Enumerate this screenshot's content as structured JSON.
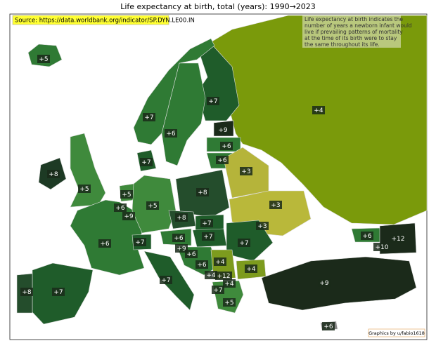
{
  "header": {
    "title": "Life expectancy at birth, total (years):  1990→2023",
    "source": "Source: https://data.worldbank.org/indicator/SP.DYN.LE00.IN",
    "note": [
      "Life expectancy at birth indicates the",
      "number of years a newborn infant would",
      "live if prevailing patterns of mortality",
      "at the time of its birth were to stay",
      "the same throughout its life."
    ],
    "credit": "Graphics by u/fabio1618"
  },
  "regions": [
    {
      "label": "+5",
      "color": "#2f7a34"
    },
    {
      "label": "+7",
      "color": "#2f7a34"
    },
    {
      "label": "+6",
      "color": "#2f7a34"
    },
    {
      "label": "+7",
      "color": "#1f5c2a"
    },
    {
      "label": "+4",
      "color": "#7a9a0b"
    },
    {
      "label": "+9",
      "color": "#1b2a1a"
    },
    {
      "label": "+6",
      "color": "#2f7a34"
    },
    {
      "label": "+6",
      "color": "#2f7a34"
    },
    {
      "label": "+7",
      "color": "#1f5c2a"
    },
    {
      "label": "+8",
      "color": "#1d3a24"
    },
    {
      "label": "+5",
      "color": "#3f8a3c"
    },
    {
      "label": "+3",
      "color": "#b5b43a"
    },
    {
      "label": "+8",
      "color": "#244d2c"
    },
    {
      "label": "+5",
      "color": "#3f8a3c"
    },
    {
      "label": "+6",
      "color": "#2f7a34"
    },
    {
      "label": "+9",
      "color": "#1b2a1a"
    },
    {
      "label": "+5",
      "color": "#3f8a3c"
    },
    {
      "label": "+3",
      "color": "#b9b83a"
    },
    {
      "label": "+8",
      "color": "#244d2c"
    },
    {
      "label": "+7",
      "color": "#1f5c2a"
    },
    {
      "label": "+3",
      "color": "#b9b83a"
    },
    {
      "label": "+6",
      "color": "#2f7a34"
    },
    {
      "label": "+7",
      "color": "#1f5c2a"
    },
    {
      "label": "+6",
      "color": "#2f7a34"
    },
    {
      "label": "+7",
      "color": "#1f5c2a"
    },
    {
      "label": "+7",
      "color": "#1f5c2a"
    },
    {
      "label": "+9",
      "color": "#1b2a1a"
    },
    {
      "label": "+6",
      "color": "#2f7a34"
    },
    {
      "label": "+6",
      "color": "#2f7a34"
    },
    {
      "label": "+12",
      "color": "#1b2a1a"
    },
    {
      "label": "+10",
      "color": "#1b2a1a"
    },
    {
      "label": "+6",
      "color": "#2f7a34"
    },
    {
      "label": "+4",
      "color": "#7d9b1e"
    },
    {
      "label": "+4",
      "color": "#7d9b1e"
    },
    {
      "label": "+4",
      "color": "#7d9b1e"
    },
    {
      "label": "+12",
      "color": "#1b2a1a"
    },
    {
      "label": "+4",
      "color": "#7d9b1e"
    },
    {
      "label": "+7",
      "color": "#1f5c2a"
    },
    {
      "label": "+7",
      "color": "#1f5c2a"
    },
    {
      "label": "+8",
      "color": "#244d2c"
    },
    {
      "label": "+7",
      "color": "#1f5c2a"
    },
    {
      "label": "+5",
      "color": "#3f8a3c"
    },
    {
      "label": "+9",
      "color": "#1b2a1a"
    },
    {
      "label": "+6",
      "color": "#888888"
    }
  ]
}
